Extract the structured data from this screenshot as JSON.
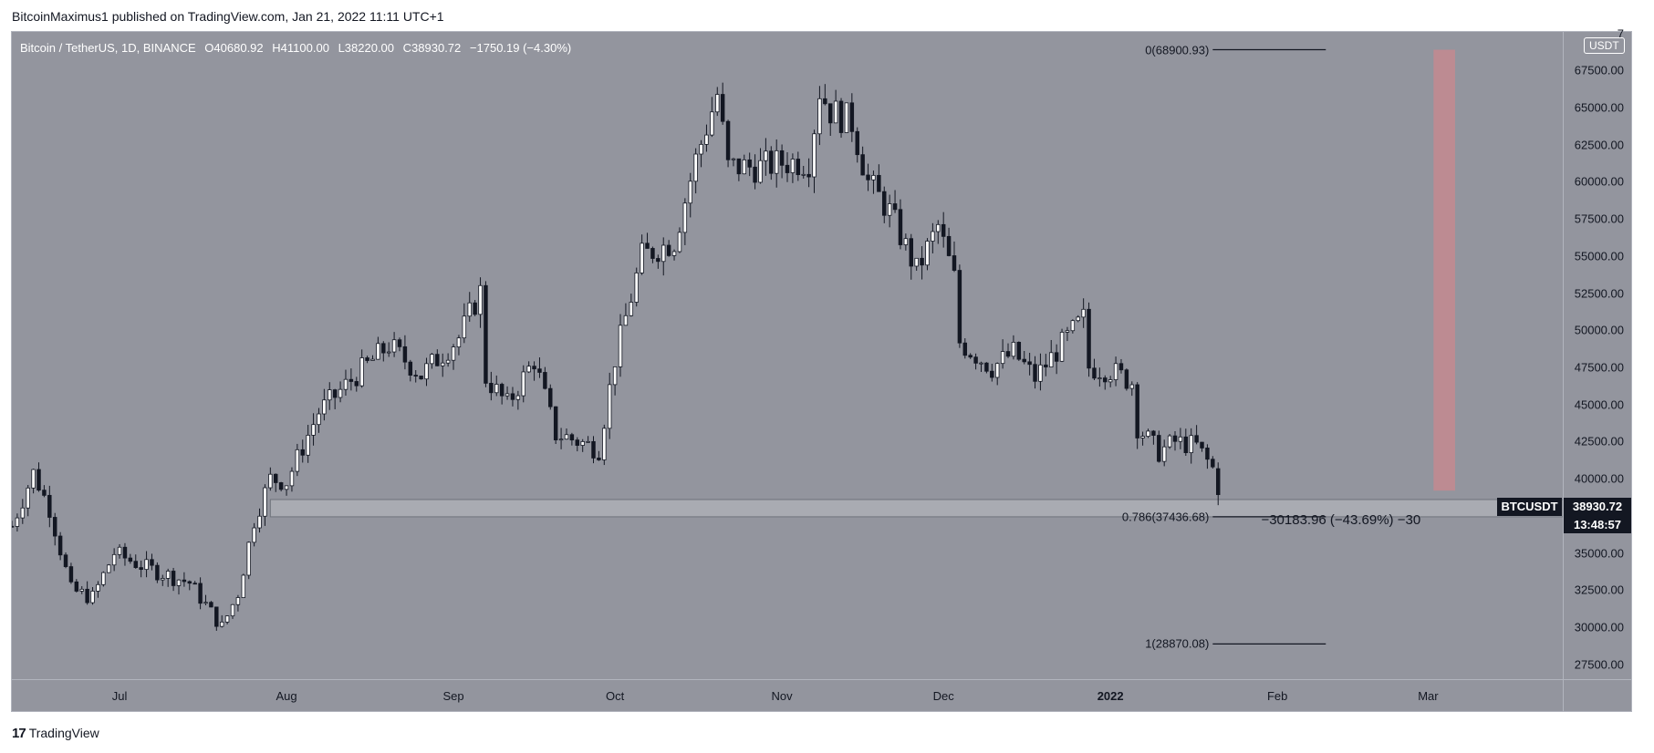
{
  "header": {
    "published_text": "BitcoinMaximus1 published on TradingView.com, Jan 21, 2022 11:11 UTC+1"
  },
  "legend": {
    "symbol": "Bitcoin / TetherUS, 1D, BINANCE",
    "o_label": "O",
    "o_value": "40680.92",
    "h_label": "H",
    "h_value": "41100.00",
    "l_label": "L",
    "l_value": "38220.00",
    "c_label": "C",
    "c_value": "38930.72",
    "change": "−1750.19 (−4.30%)"
  },
  "unit_badge": "USDT",
  "price_tag": {
    "symbol": "BTCUSDT",
    "price": "38930.72",
    "countdown": "13:48:57"
  },
  "fib": {
    "level_0": "0(68900.93)",
    "level_0786": "0.786(37436.68)",
    "level_1": "1(28870.08)"
  },
  "measure_text": "−30183.96 (−43.69%) −30",
  "footer": {
    "brand": "TradingView",
    "brand_mark": "17"
  },
  "colors": {
    "plot_bg": "#93959e",
    "candle_up": "#ffffff",
    "candle_down": "#131722",
    "support_zone": "#a9abb2",
    "target_box": "#c48a8f"
  },
  "chart_data": {
    "type": "candlestick",
    "title": "Bitcoin / TetherUS, 1D, BINANCE",
    "ylim": [
      26500,
      70100
    ],
    "y_ticks": [
      "27500.00",
      "30000.00",
      "32500.00",
      "35000.00",
      "37500.00",
      "40000.00",
      "42500.00",
      "45000.00",
      "47500.00",
      "50000.00",
      "52500.00",
      "55000.00",
      "57500.00",
      "60000.00",
      "62500.00",
      "65000.00",
      "67500.00",
      "7"
    ],
    "x_ticks": [
      {
        "label": "Jul",
        "date": "2021-07-01"
      },
      {
        "label": "Aug",
        "date": "2021-08-01"
      },
      {
        "label": "Sep",
        "date": "2021-09-01"
      },
      {
        "label": "Oct",
        "date": "2021-10-01"
      },
      {
        "label": "Nov",
        "date": "2021-11-01"
      },
      {
        "label": "Dec",
        "date": "2021-12-01"
      },
      {
        "label": "2022",
        "date": "2022-01-01"
      },
      {
        "label": "Feb",
        "date": "2022-02-01"
      },
      {
        "label": "Mar",
        "date": "2022-03-01"
      }
    ],
    "x_range": [
      "2021-06-11",
      "2022-03-26"
    ],
    "support_zone": {
      "from": "2021-07-29",
      "to": "2022-03-26",
      "low": 37436.68,
      "high": 38600
    },
    "target_box": {
      "from": "2022-03-02",
      "to": "2022-03-06",
      "low": 39200,
      "high": 68900.93
    },
    "fib_levels": [
      {
        "level": "0",
        "price": 68900.93,
        "from": "2022-01-20",
        "to": "2022-02-10"
      },
      {
        "level": "0.786",
        "price": 37436.68,
        "from": "2022-01-20",
        "to": "2022-02-10"
      },
      {
        "level": "1",
        "price": 28870.08,
        "from": "2022-01-20",
        "to": "2022-02-10"
      }
    ],
    "anchors": [
      [
        "2021-06-11",
        36800
      ],
      [
        "2021-06-15",
        40400
      ],
      [
        "2021-06-18",
        38000
      ],
      [
        "2021-06-22",
        32500
      ],
      [
        "2021-06-26",
        32000
      ],
      [
        "2021-06-30",
        35000
      ],
      [
        "2021-07-06",
        34000
      ],
      [
        "2021-07-14",
        33000
      ],
      [
        "2021-07-20",
        30000
      ],
      [
        "2021-07-23",
        32300
      ],
      [
        "2021-07-26",
        37200
      ],
      [
        "2021-07-29",
        40000
      ],
      [
        "2021-08-01",
        39800
      ],
      [
        "2021-08-07",
        44500
      ],
      [
        "2021-08-14",
        47000
      ],
      [
        "2021-08-20",
        49000
      ],
      [
        "2021-08-26",
        47000
      ],
      [
        "2021-09-02",
        49500
      ],
      [
        "2021-09-06",
        52600
      ],
      [
        "2021-09-07",
        46800
      ],
      [
        "2021-09-11",
        45000
      ],
      [
        "2021-09-16",
        48000
      ],
      [
        "2021-09-20",
        43000
      ],
      [
        "2021-09-22",
        42800
      ],
      [
        "2021-09-28",
        42000
      ],
      [
        "2021-10-01",
        48100
      ],
      [
        "2021-10-06",
        55000
      ],
      [
        "2021-10-12",
        56000
      ],
      [
        "2021-10-16",
        61500
      ],
      [
        "2021-10-20",
        65900
      ],
      [
        "2021-10-22",
        61000
      ],
      [
        "2021-10-28",
        61000
      ],
      [
        "2021-11-01",
        61300
      ],
      [
        "2021-11-06",
        61400
      ],
      [
        "2021-11-08",
        66200
      ],
      [
        "2021-11-10",
        64800
      ],
      [
        "2021-11-14",
        64000
      ],
      [
        "2021-11-17",
        60000
      ],
      [
        "2021-11-21",
        58000
      ],
      [
        "2021-11-26",
        54000
      ],
      [
        "2021-11-30",
        57000
      ],
      [
        "2021-12-03",
        53500
      ],
      [
        "2021-12-04",
        49200
      ],
      [
        "2021-12-10",
        47500
      ],
      [
        "2021-12-14",
        48500
      ],
      [
        "2021-12-18",
        46800
      ],
      [
        "2021-12-22",
        48600
      ],
      [
        "2021-12-27",
        50800
      ],
      [
        "2021-12-28",
        47500
      ],
      [
        "2022-01-01",
        47300
      ],
      [
        "2022-01-05",
        46500
      ],
      [
        "2022-01-06",
        43500
      ],
      [
        "2022-01-10",
        41800
      ],
      [
        "2022-01-13",
        42500
      ],
      [
        "2022-01-17",
        42200
      ],
      [
        "2022-01-20",
        40700
      ],
      [
        "2022-01-21",
        38930.72
      ]
    ]
  }
}
